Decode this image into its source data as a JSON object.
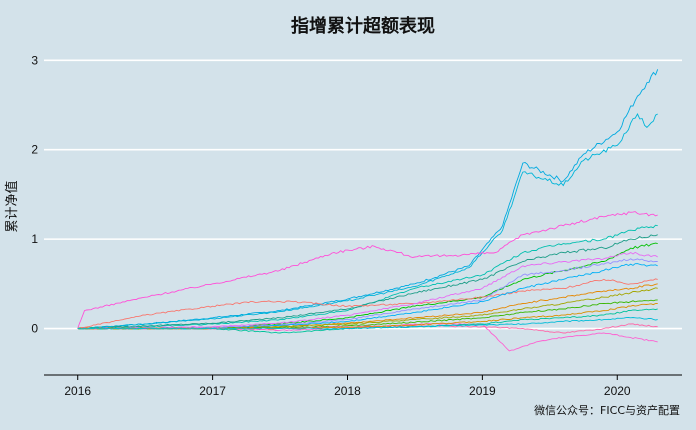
{
  "chart_data": {
    "type": "line",
    "title": "指增累计超额表现",
    "ylabel": "累计净值",
    "xlabel": "",
    "xlim": [
      2015.75,
      2020.48
    ],
    "ylim": [
      -0.52,
      3.25
    ],
    "x_ticks": [
      2016,
      2017,
      2018,
      2019,
      2020
    ],
    "x_tick_labels": [
      "2016",
      "2017",
      "2018",
      "2019",
      "2020"
    ],
    "y_ticks": [
      0,
      1,
      2,
      3
    ],
    "y_tick_labels": [
      "0",
      "1",
      "2",
      "3"
    ],
    "grid": true,
    "legend": "none",
    "caption": "微信公众号：FICC与资产配置",
    "series": [
      {
        "color": "#00a9e0",
        "x": [
          2016.0,
          2016.5,
          2017.0,
          2017.5,
          2018.0,
          2018.5,
          2018.9,
          2019.15,
          2019.3,
          2019.6,
          2019.75,
          2020.0,
          2020.15,
          2020.22,
          2020.3
        ],
        "y": [
          0.0,
          0.05,
          0.12,
          0.2,
          0.33,
          0.5,
          0.7,
          1.15,
          1.85,
          1.65,
          1.95,
          2.2,
          2.6,
          2.75,
          2.9
        ]
      },
      {
        "color": "#00b4d8",
        "x": [
          2016.0,
          2016.5,
          2017.0,
          2017.5,
          2018.0,
          2018.5,
          2018.9,
          2019.15,
          2019.3,
          2019.6,
          2019.75,
          2020.0,
          2020.15,
          2020.22,
          2020.3
        ],
        "y": [
          0.0,
          0.05,
          0.11,
          0.19,
          0.31,
          0.47,
          0.68,
          1.1,
          1.75,
          1.6,
          1.88,
          2.05,
          2.4,
          2.25,
          2.4
        ]
      },
      {
        "color": "#ff4fd8",
        "x": [
          2016.0,
          2016.05,
          2016.5,
          2017.0,
          2017.5,
          2017.9,
          2018.2,
          2018.5,
          2018.8,
          2019.1,
          2019.3,
          2019.6,
          2019.9,
          2020.1,
          2020.3
        ],
        "y": [
          0.0,
          0.2,
          0.35,
          0.5,
          0.65,
          0.85,
          0.92,
          0.8,
          0.82,
          0.85,
          1.05,
          1.15,
          1.25,
          1.3,
          1.27
        ]
      },
      {
        "color": "#00bfae",
        "x": [
          2016.0,
          2016.5,
          2017.0,
          2017.5,
          2018.0,
          2018.5,
          2019.0,
          2019.3,
          2019.6,
          2019.9,
          2020.1,
          2020.3
        ],
        "y": [
          0.0,
          0.02,
          0.05,
          0.1,
          0.2,
          0.45,
          0.6,
          0.85,
          0.95,
          1.0,
          1.1,
          1.15
        ]
      },
      {
        "color": "#1f9e89",
        "x": [
          2016.0,
          2016.5,
          2017.0,
          2017.5,
          2018.0,
          2018.5,
          2019.0,
          2019.3,
          2019.6,
          2019.9,
          2020.1,
          2020.3
        ],
        "y": [
          0.0,
          0.03,
          0.06,
          0.12,
          0.22,
          0.4,
          0.55,
          0.75,
          0.85,
          0.9,
          1.0,
          1.05
        ]
      },
      {
        "color": "#00c000",
        "x": [
          2016.0,
          2017.0,
          2017.5,
          2018.0,
          2018.5,
          2019.0,
          2019.3,
          2019.6,
          2019.9,
          2020.1,
          2020.3
        ],
        "y": [
          0.0,
          0.0,
          0.05,
          0.12,
          0.25,
          0.35,
          0.55,
          0.65,
          0.75,
          0.9,
          0.95
        ]
      },
      {
        "color": "#f8766d",
        "x": [
          2016.0,
          2016.5,
          2017.0,
          2017.3,
          2017.6,
          2018.0,
          2018.5,
          2019.0,
          2019.3,
          2019.6,
          2019.9,
          2020.1,
          2020.3
        ],
        "y": [
          0.0,
          0.15,
          0.25,
          0.3,
          0.3,
          0.25,
          0.28,
          0.35,
          0.42,
          0.45,
          0.55,
          0.5,
          0.55
        ]
      },
      {
        "color": "#e76bf3",
        "x": [
          2016.0,
          2017.0,
          2017.5,
          2018.0,
          2018.5,
          2019.0,
          2019.3,
          2019.6,
          2019.9,
          2020.1,
          2020.3
        ],
        "y": [
          0.0,
          0.02,
          0.06,
          0.15,
          0.28,
          0.45,
          0.7,
          0.75,
          0.78,
          0.85,
          0.8
        ]
      },
      {
        "color": "#9590ff",
        "x": [
          2016.0,
          2017.0,
          2017.5,
          2018.0,
          2018.5,
          2019.0,
          2019.3,
          2019.6,
          2019.9,
          2020.1,
          2020.3
        ],
        "y": [
          0.0,
          0.01,
          0.04,
          0.1,
          0.22,
          0.32,
          0.6,
          0.65,
          0.72,
          0.78,
          0.75
        ]
      },
      {
        "color": "#00b0f6",
        "x": [
          2016.0,
          2017.0,
          2017.5,
          2018.0,
          2018.5,
          2019.0,
          2019.3,
          2019.6,
          2019.9,
          2020.1,
          2020.3
        ],
        "y": [
          0.0,
          0.0,
          0.03,
          0.08,
          0.18,
          0.3,
          0.45,
          0.55,
          0.65,
          0.72,
          0.7
        ]
      },
      {
        "color": "#e58700",
        "x": [
          2016.0,
          2017.0,
          2017.5,
          2018.0,
          2018.5,
          2019.0,
          2019.3,
          2019.6,
          2019.9,
          2020.1,
          2020.3
        ],
        "y": [
          0.0,
          0.0,
          0.02,
          0.06,
          0.12,
          0.18,
          0.28,
          0.35,
          0.42,
          0.45,
          0.5
        ]
      },
      {
        "color": "#a3a500",
        "x": [
          2016.0,
          2017.0,
          2017.5,
          2018.0,
          2018.5,
          2019.0,
          2019.3,
          2019.6,
          2019.9,
          2020.1,
          2020.3
        ],
        "y": [
          0.0,
          0.0,
          0.02,
          0.05,
          0.1,
          0.15,
          0.22,
          0.28,
          0.35,
          0.4,
          0.45
        ]
      },
      {
        "color": "#39b600",
        "x": [
          2016.0,
          2017.0,
          2017.5,
          2018.0,
          2018.5,
          2019.0,
          2019.3,
          2019.6,
          2019.9,
          2020.1,
          2020.3
        ],
        "y": [
          0.0,
          0.0,
          0.01,
          0.03,
          0.07,
          0.12,
          0.18,
          0.22,
          0.28,
          0.3,
          0.32
        ]
      },
      {
        "color": "#fd61d1",
        "x": [
          2016.0,
          2017.0,
          2017.5,
          2018.0,
          2018.5,
          2019.0,
          2019.2,
          2019.4,
          2019.6,
          2019.9,
          2020.1,
          2020.3
        ],
        "y": [
          0.0,
          0.0,
          -0.02,
          0.0,
          0.05,
          0.05,
          -0.25,
          -0.15,
          -0.1,
          -0.05,
          -0.1,
          -0.15
        ]
      },
      {
        "color": "#ff66a8",
        "x": [
          2016.0,
          2017.0,
          2017.5,
          2018.0,
          2018.5,
          2019.0,
          2019.3,
          2019.6,
          2019.9,
          2020.1,
          2020.3
        ],
        "y": [
          0.0,
          0.0,
          0.0,
          0.02,
          0.03,
          0.02,
          0.0,
          -0.05,
          0.0,
          0.05,
          0.02
        ]
      },
      {
        "color": "#00c19a",
        "x": [
          2016.0,
          2017.0,
          2017.5,
          2018.0,
          2018.5,
          2019.0,
          2019.3,
          2019.6,
          2019.9,
          2020.1,
          2020.3
        ],
        "y": [
          0.0,
          0.0,
          -0.05,
          0.0,
          0.02,
          0.05,
          0.1,
          0.12,
          0.15,
          0.2,
          0.22
        ]
      },
      {
        "color": "#d89000",
        "x": [
          2016.0,
          2017.0,
          2017.5,
          2018.0,
          2018.5,
          2019.0,
          2019.3,
          2019.6,
          2019.9,
          2020.1,
          2020.3
        ],
        "y": [
          0.0,
          0.0,
          0.0,
          0.01,
          0.04,
          0.08,
          0.12,
          0.15,
          0.2,
          0.25,
          0.28
        ]
      },
      {
        "color": "#00bcd8",
        "x": [
          2016.0,
          2017.0,
          2017.5,
          2018.0,
          2018.5,
          2019.0,
          2019.3,
          2019.6,
          2019.9,
          2020.1,
          2020.3
        ],
        "y": [
          0.0,
          0.0,
          0.0,
          0.0,
          0.02,
          0.04,
          0.05,
          0.08,
          0.1,
          0.12,
          0.1
        ]
      }
    ]
  }
}
